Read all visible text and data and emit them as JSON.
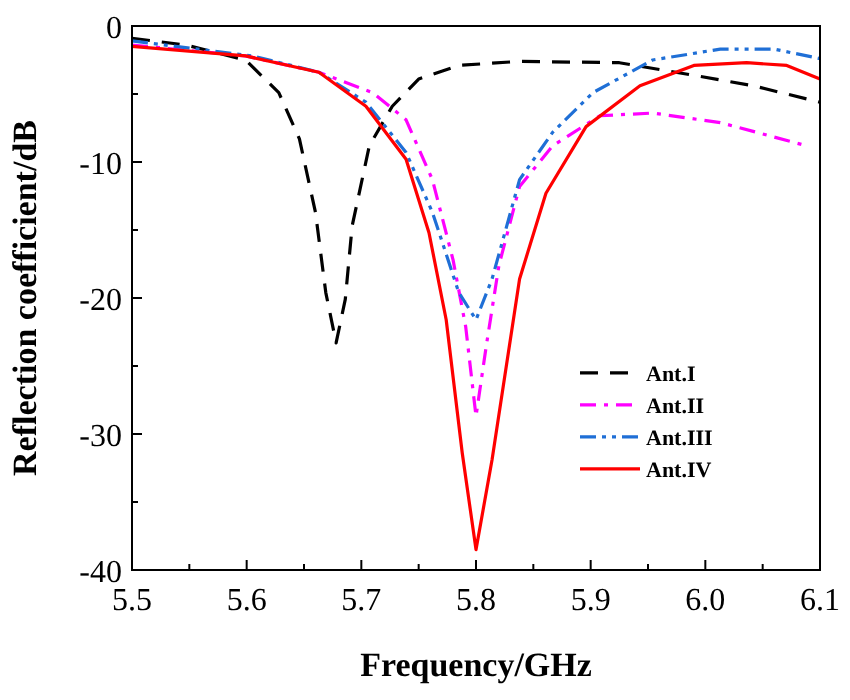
{
  "chart_data": {
    "type": "line",
    "xlabel": "Frequency/GHz",
    "ylabel": "Reflection coefficient/dB",
    "xlim": [
      5.5,
      6.1
    ],
    "ylim": [
      -40,
      0
    ],
    "xticks": [
      5.5,
      {
        "value": 5.55,
        "label": null
      },
      5.6,
      {
        "value": 5.65,
        "label": null
      },
      5.7,
      {
        "value": 5.75,
        "label": null
      },
      5.8,
      {
        "value": 5.85,
        "label": null
      },
      5.9,
      {
        "value": 5.95,
        "label": null
      },
      {
        "value": 6.0,
        "label": "6.0"
      },
      {
        "value": 6.05,
        "label": null
      },
      6.1
    ],
    "yticks": [
      -40,
      {
        "value": -35,
        "label": null
      },
      -30,
      {
        "value": -25,
        "label": null
      },
      -20,
      {
        "value": -15,
        "label": null
      },
      -10,
      {
        "value": -5,
        "label": null
      },
      0
    ],
    "grid": false,
    "legend": "bottom right",
    "marker": "none",
    "series": [
      {
        "name": "Ant.I",
        "color": "#000000",
        "line_style": "dashed",
        "x": [
          5.5,
          5.547,
          5.599,
          5.628,
          5.646,
          5.66,
          5.669,
          5.678,
          5.686,
          5.692,
          5.707,
          5.727,
          5.75,
          5.785,
          5.838,
          5.925,
          5.995,
          6.042,
          6.1
        ],
        "values": [
          -0.9,
          -1.4,
          -2.5,
          -4.9,
          -8.3,
          -13.7,
          -19.6,
          -23.3,
          -20.1,
          -14.7,
          -8.8,
          -5.9,
          -3.9,
          -2.9,
          -2.6,
          -2.7,
          -3.7,
          -4.4,
          -5.6
        ]
      },
      {
        "name": "Ant.II",
        "color": "#ff00ff",
        "line_style": "dashdot",
        "x": [
          5.5,
          5.599,
          5.663,
          5.71,
          5.739,
          5.762,
          5.78,
          5.791,
          5.8,
          5.809,
          5.82,
          5.838,
          5.867,
          5.908,
          5.954,
          6.013,
          6.088
        ],
        "values": [
          -1.4,
          -2.2,
          -3.4,
          -4.9,
          -6.9,
          -11.3,
          -17.2,
          -22.1,
          -28.7,
          -23.5,
          -17.6,
          -11.8,
          -8.8,
          -6.6,
          -6.4,
          -7.1,
          -8.8
        ]
      },
      {
        "name": "Ant.III",
        "color": "#1f6fd6",
        "line_style": "dashdotdot",
        "x": [
          5.5,
          5.605,
          5.663,
          5.704,
          5.739,
          5.762,
          5.785,
          5.8,
          5.814,
          5.838,
          5.867,
          5.902,
          5.954,
          6.013,
          6.06,
          6.1
        ],
        "values": [
          -1.1,
          -2.2,
          -3.4,
          -5.6,
          -9.3,
          -13.7,
          -19.6,
          -21.6,
          -18.6,
          -11.3,
          -7.8,
          -4.9,
          -2.5,
          -1.7,
          -1.7,
          -2.4
        ]
      },
      {
        "name": "Ant.IV",
        "color": "#ff0000",
        "line_style": "solid",
        "x": [
          5.5,
          5.599,
          5.663,
          5.704,
          5.739,
          5.759,
          5.774,
          5.788,
          5.8,
          5.814,
          5.838,
          5.861,
          5.896,
          5.943,
          5.99,
          6.036,
          6.071,
          6.1
        ],
        "values": [
          -1.5,
          -2.2,
          -3.4,
          -5.9,
          -9.8,
          -15.2,
          -21.6,
          -31.4,
          -38.5,
          -31.9,
          -18.6,
          -12.3,
          -7.4,
          -4.4,
          -2.9,
          -2.7,
          -2.9,
          -3.9
        ]
      }
    ]
  }
}
